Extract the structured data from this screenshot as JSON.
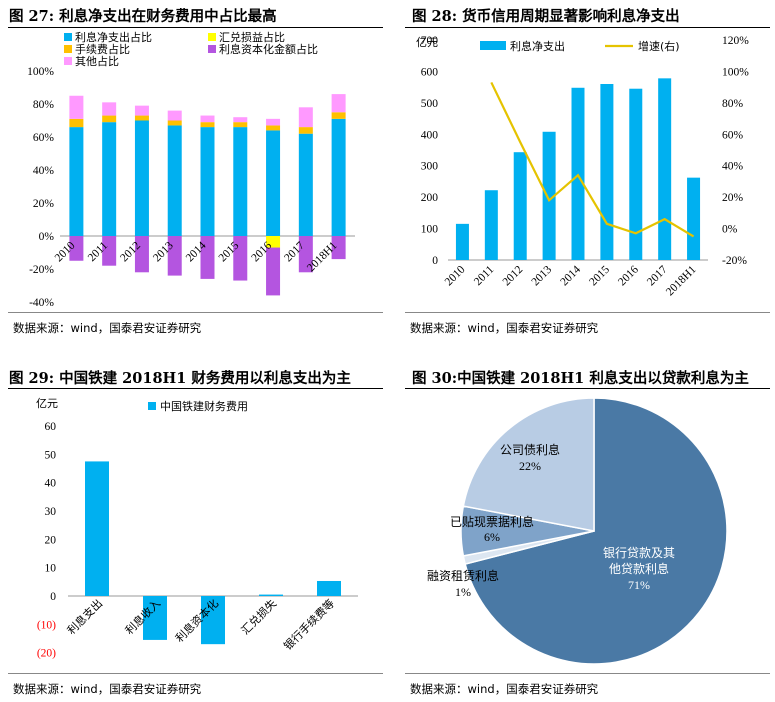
{
  "titles": {
    "fig27": "图 27:  利息净支出在财务费用中占比最高",
    "fig28": "图 28:  货币信用周期显著影响利息净支出",
    "fig29": "图 29:  中国铁建 2018H1 财务费用以利息支出为主",
    "fig30": "图 30:中国铁建 2018H1 利息支出以贷款利息为主"
  },
  "source_text": "数据来源：wind，国泰君安证券研究",
  "colors": {
    "blue": "#00B0F0",
    "yellow": "#FFFF00",
    "orange": "#FFC000",
    "purple": "#B455E0",
    "pink": "#FF99FF",
    "line": "#E5C300",
    "red_text": "#FF0000",
    "pie_dark": "#4A79A5",
    "pie_mid": "#7FA3C9",
    "pie_light": "#B8CCE4",
    "pie_pale": "#DCE6F1"
  },
  "chart_data": [
    {
      "id": "fig27",
      "type": "bar",
      "stacked": true,
      "categories": [
        "2010",
        "2011",
        "2012",
        "2013",
        "2014",
        "2015",
        "2016",
        "2017",
        "2018H1"
      ],
      "series": [
        {
          "name": "利息净支出占比",
          "values": [
            66,
            69,
            70,
            67,
            66,
            66,
            64,
            62,
            71
          ]
        },
        {
          "name": "汇兑损益占比",
          "values": [
            0,
            0,
            0,
            0,
            0,
            0,
            -7,
            0,
            0
          ]
        },
        {
          "name": "手续费占比",
          "values": [
            5,
            4,
            3,
            3,
            3,
            3,
            3,
            4,
            4
          ]
        },
        {
          "name": "利息资本化金额占比",
          "values": [
            -15,
            -18,
            -22,
            -24,
            -26,
            -27,
            -29,
            -22,
            -14
          ]
        },
        {
          "name": "其他占比",
          "values": [
            14,
            8,
            6,
            6,
            4,
            3,
            4,
            12,
            11
          ]
        }
      ],
      "yticks": [
        "100%",
        "80%",
        "60%",
        "40%",
        "20%",
        "0%",
        "-20%",
        "-40%"
      ],
      "ylim": [
        -40,
        100
      ]
    },
    {
      "id": "fig28",
      "type": "bar+line",
      "categories": [
        "2010",
        "2011",
        "2012",
        "2013",
        "2014",
        "2015",
        "2016",
        "2017",
        "2018H1"
      ],
      "bar_series": {
        "name": "利息净支出",
        "values": [
          115,
          222,
          343,
          408,
          548,
          560,
          545,
          578,
          262
        ]
      },
      "line_series": {
        "name": "增速(右)",
        "values": [
          null,
          93,
          55,
          18,
          34,
          3,
          -3,
          6,
          -5
        ]
      },
      "ylabel": "亿元",
      "yticks_left": [
        "700",
        "600",
        "500",
        "400",
        "300",
        "200",
        "100",
        "0"
      ],
      "yticks_right": [
        "120%",
        "100%",
        "80%",
        "60%",
        "40%",
        "20%",
        "0%",
        "-20%"
      ],
      "ylim_left": [
        0,
        700
      ],
      "ylim_right": [
        -20,
        120
      ]
    },
    {
      "id": "fig29",
      "type": "bar",
      "categories": [
        "利息支出",
        "利息收入",
        "利息资本化",
        "汇兑损失",
        "银行手续费等"
      ],
      "series": [
        {
          "name": "中国铁建财务费用",
          "values": [
            47.5,
            -15.5,
            -17,
            0.5,
            5.3
          ]
        }
      ],
      "ylabel": "亿元",
      "yticks": [
        "60",
        "50",
        "40",
        "30",
        "20",
        "10",
        "0",
        "(10)",
        "(20)"
      ],
      "ylim": [
        -20,
        60
      ]
    },
    {
      "id": "fig30",
      "type": "pie",
      "slices": [
        {
          "label": "银行贷款及其他贷款利息",
          "line1": "银行贷款及其",
          "line2": "他贷款利息",
          "pct": "71%",
          "value": 71
        },
        {
          "label": "融资租赁利息",
          "line1": "融资租赁利息",
          "pct": "1%",
          "value": 1
        },
        {
          "label": "已贴现票据利息",
          "line1": "已贴现票据利息",
          "pct": "6%",
          "value": 6
        },
        {
          "label": "公司债利息",
          "line1": "公司债利息",
          "pct": "22%",
          "value": 22
        }
      ]
    }
  ]
}
